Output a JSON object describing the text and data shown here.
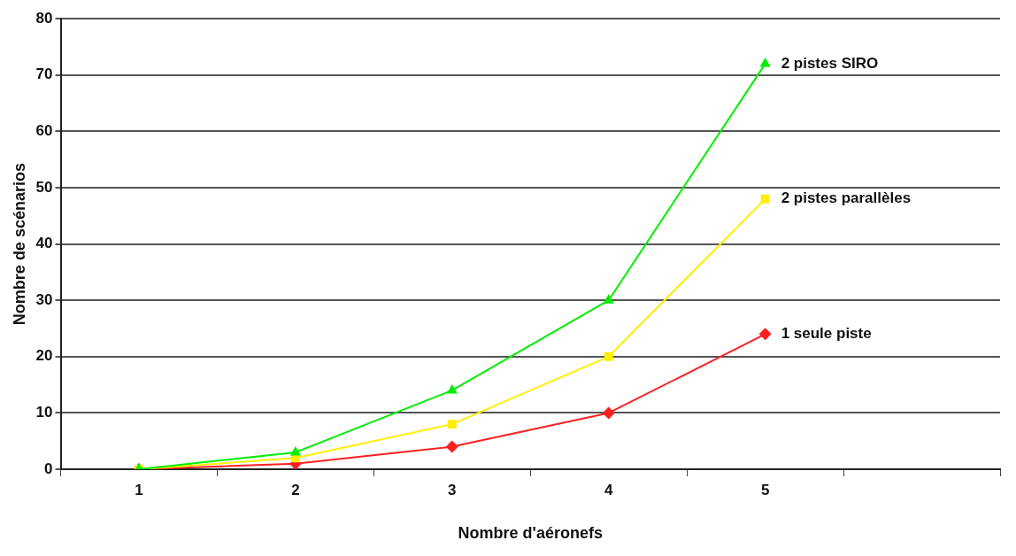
{
  "chart_data": {
    "type": "line",
    "xlabel": "Nombre d'aéronefs",
    "ylabel": "Nombre de scénarios",
    "categories": [
      "1",
      "2",
      "3",
      "4",
      "5",
      null
    ],
    "series": [
      {
        "name": "2 pistes SIRO",
        "color": "#00ee00",
        "marker": "triangle",
        "values": [
          0,
          3,
          14,
          30,
          72,
          null
        ]
      },
      {
        "name": "2 pistes parallèles",
        "color": "#ffee00",
        "marker": "square",
        "values": [
          0,
          2,
          8,
          20,
          48,
          null
        ]
      },
      {
        "name": "1 seule piste",
        "color": "#ff2020",
        "marker": "diamond",
        "values": [
          0,
          1,
          4,
          10,
          24,
          null
        ]
      }
    ],
    "ylim": [
      0,
      80
    ],
    "yticks": [
      0,
      10,
      20,
      30,
      40,
      50,
      60,
      70,
      80
    ],
    "grid": "y",
    "legend": false
  }
}
